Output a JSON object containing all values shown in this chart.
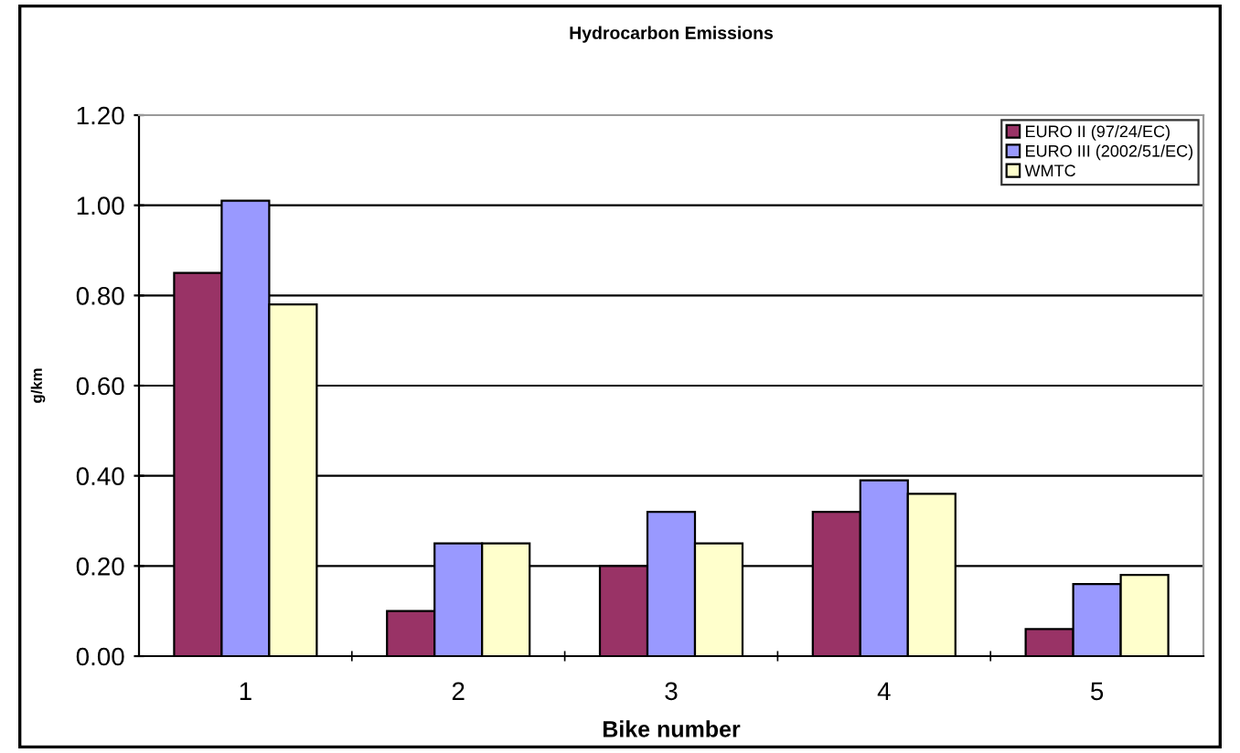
{
  "chart_data": {
    "type": "bar",
    "title": "Hydrocarbon Emissions",
    "xlabel": "Bike number",
    "ylabel": "g/km",
    "categories": [
      "1",
      "2",
      "3",
      "4",
      "5"
    ],
    "series": [
      {
        "name": "EURO II (97/24/EC)",
        "color": "#993366",
        "values": [
          0.85,
          0.1,
          0.2,
          0.32,
          0.06
        ]
      },
      {
        "name": "EURO III (2002/51/EC)",
        "color": "#9999ff",
        "values": [
          1.01,
          0.25,
          0.32,
          0.39,
          0.16
        ]
      },
      {
        "name": "WMTC",
        "color": "#ffffcc",
        "values": [
          0.78,
          0.25,
          0.25,
          0.36,
          0.18
        ]
      }
    ],
    "ylim": [
      0,
      1.2
    ],
    "yticks": [
      {
        "value": 0,
        "label": "0.00"
      },
      {
        "value": 0.2,
        "label": "0.20"
      },
      {
        "value": 0.4,
        "label": "0.40"
      },
      {
        "value": 0.6,
        "label": "0.60"
      },
      {
        "value": 0.8,
        "label": "0.80"
      },
      {
        "value": 1.0,
        "label": "1.00"
      },
      {
        "value": 1.2,
        "label": "1.20"
      }
    ],
    "grid": "y",
    "legend": "top right"
  }
}
